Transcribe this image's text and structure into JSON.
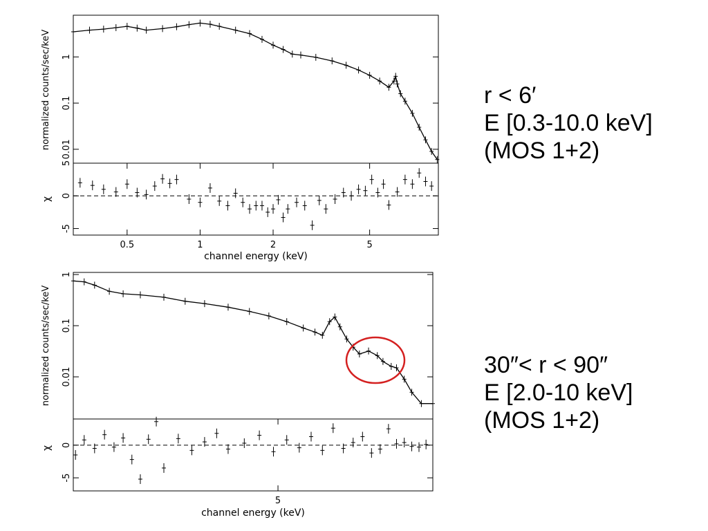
{
  "captions": {
    "top": [
      "r < 6′",
      "E [0.3-10.0 keV]",
      "(MOS 1+2)"
    ],
    "bottom": [
      "30″< r < 90″",
      "E [2.0-10 keV]",
      "(MOS 1+2)"
    ]
  },
  "colors": {
    "ink": "#000000",
    "highlight": "#d42020"
  },
  "chart_data": [
    {
      "type": "scatter",
      "panel": "top-spectrum",
      "ylabel": "normalized counts/sec/keV",
      "xscale": "log",
      "yscale": "log",
      "xlim": [
        0.3,
        9.6
      ],
      "ylim": [
        0.005,
        8
      ],
      "yticks": [
        {
          "v": 1,
          "label": "1"
        },
        {
          "v": 0.1,
          "label": "0.1"
        },
        {
          "v": 0.01,
          "label": "0.01"
        }
      ],
      "series": [
        {
          "x": [
            0.3,
            0.35,
            0.4,
            0.45,
            0.5,
            0.55,
            0.6,
            0.7,
            0.8,
            0.9,
            1.0,
            1.1,
            1.2,
            1.4,
            1.6,
            1.8,
            2.0,
            2.2,
            2.4,
            2.6,
            3.0,
            3.5,
            4.0,
            4.5,
            5.0,
            5.5,
            6.0,
            6.3,
            6.4,
            6.5,
            6.7,
            7.0,
            7.5,
            8.0,
            8.5,
            9.0,
            9.5
          ],
          "y": [
            3.5,
            3.8,
            4.0,
            4.3,
            4.6,
            4.2,
            3.8,
            4.1,
            4.5,
            5.0,
            5.4,
            5.1,
            4.6,
            3.8,
            3.2,
            2.4,
            1.8,
            1.45,
            1.15,
            1.1,
            0.98,
            0.82,
            0.66,
            0.52,
            0.4,
            0.3,
            0.22,
            0.3,
            0.38,
            0.26,
            0.16,
            0.11,
            0.06,
            0.03,
            0.016,
            0.009,
            0.006
          ]
        }
      ]
    },
    {
      "type": "scatter",
      "panel": "top-residuals",
      "ylabel": "χ",
      "xlabel": "channel energy (keV)",
      "xscale": "log",
      "xlim": [
        0.3,
        9.6
      ],
      "ylim": [
        -6,
        5
      ],
      "xticks": [
        {
          "v": 0.5,
          "label": "0.5"
        },
        {
          "v": 1,
          "label": "1"
        },
        {
          "v": 2,
          "label": "2"
        },
        {
          "v": 5,
          "label": "5"
        }
      ],
      "yticks": [
        {
          "v": 5,
          "label": "5"
        },
        {
          "v": 0,
          "label": "0"
        },
        {
          "v": -5,
          "label": "-5"
        }
      ],
      "series": [
        {
          "x": [
            0.32,
            0.36,
            0.4,
            0.45,
            0.5,
            0.55,
            0.6,
            0.65,
            0.7,
            0.75,
            0.8,
            0.9,
            1.0,
            1.1,
            1.2,
            1.3,
            1.4,
            1.5,
            1.6,
            1.7,
            1.8,
            1.9,
            2.0,
            2.1,
            2.2,
            2.3,
            2.5,
            2.7,
            2.9,
            3.1,
            3.3,
            3.6,
            3.9,
            4.2,
            4.5,
            4.8,
            5.1,
            5.4,
            5.7,
            6.0,
            6.5,
            7.0,
            7.5,
            8.0,
            8.5,
            9.0
          ],
          "y": [
            2,
            1.6,
            1,
            0.6,
            1.8,
            0.5,
            0.2,
            1.5,
            2.6,
            1.9,
            2.5,
            -0.5,
            -1,
            1.2,
            -0.8,
            -1.5,
            0.4,
            -1,
            -2,
            -1.5,
            -1.5,
            -2.5,
            -2,
            -0.6,
            -3.3,
            -2,
            -1,
            -1.5,
            -4.5,
            -0.7,
            -2,
            -0.5,
            0.5,
            0,
            1,
            0.8,
            2.5,
            0.5,
            1.8,
            -1.4,
            0.6,
            2.5,
            1.8,
            3.5,
            2.2,
            1.5
          ]
        }
      ]
    },
    {
      "type": "scatter",
      "panel": "bottom-spectrum",
      "ylabel": "normalized counts/sec/keV",
      "xscale": "log",
      "yscale": "log",
      "xlim": [
        2.0,
        10.0
      ],
      "ylim": [
        0.0015,
        1.1
      ],
      "yticks": [
        {
          "v": 1,
          "label": "1"
        },
        {
          "v": 0.1,
          "label": "0.1"
        },
        {
          "v": 0.01,
          "label": "0.01"
        }
      ],
      "series": [
        {
          "x": [
            2.0,
            2.1,
            2.2,
            2.35,
            2.5,
            2.7,
            3.0,
            3.3,
            3.6,
            4.0,
            4.4,
            4.8,
            5.2,
            5.6,
            5.9,
            6.1,
            6.3,
            6.45,
            6.6,
            6.8,
            7.0,
            7.2,
            7.5,
            7.8,
            8.0,
            8.3,
            8.5,
            8.8,
            9.1,
            9.5,
            10.0
          ],
          "y": [
            0.75,
            0.72,
            0.62,
            0.47,
            0.42,
            0.4,
            0.36,
            0.3,
            0.27,
            0.23,
            0.19,
            0.155,
            0.12,
            0.09,
            0.075,
            0.065,
            0.12,
            0.148,
            0.095,
            0.055,
            0.038,
            0.028,
            0.032,
            0.026,
            0.02,
            0.016,
            0.015,
            0.009,
            0.005,
            0.003,
            0.003
          ]
        }
      ]
    },
    {
      "type": "scatter",
      "panel": "bottom-residuals",
      "ylabel": "χ",
      "xlabel": "channel energy (keV)",
      "xscale": "log",
      "xlim": [
        2.0,
        10.0
      ],
      "ylim": [
        -7,
        4
      ],
      "xticks": [
        {
          "v": 5,
          "label": "5"
        }
      ],
      "yticks": [
        {
          "v": 0,
          "label": "0"
        },
        {
          "v": -5,
          "label": "-5"
        }
      ],
      "series": [
        {
          "x": [
            2.02,
            2.1,
            2.2,
            2.3,
            2.4,
            2.5,
            2.6,
            2.7,
            2.8,
            2.9,
            3.0,
            3.2,
            3.4,
            3.6,
            3.8,
            4.0,
            4.3,
            4.6,
            4.9,
            5.2,
            5.5,
            5.8,
            6.1,
            6.4,
            6.7,
            7.0,
            7.3,
            7.6,
            7.9,
            8.2,
            8.5,
            8.8,
            9.1,
            9.4,
            9.7
          ],
          "y": [
            -1.5,
            0.8,
            -0.5,
            1.6,
            -0.3,
            1.1,
            -2.2,
            -5.2,
            0.9,
            3.6,
            -3.5,
            1,
            -0.8,
            0.5,
            1.8,
            -0.6,
            0.3,
            1.5,
            -1,
            0.8,
            -0.4,
            1.3,
            -0.8,
            2.6,
            -0.5,
            0.4,
            1.3,
            -1.2,
            -0.6,
            2.5,
            0.2,
            0.4,
            -0.2,
            -0.3,
            0.1
          ]
        }
      ]
    }
  ]
}
